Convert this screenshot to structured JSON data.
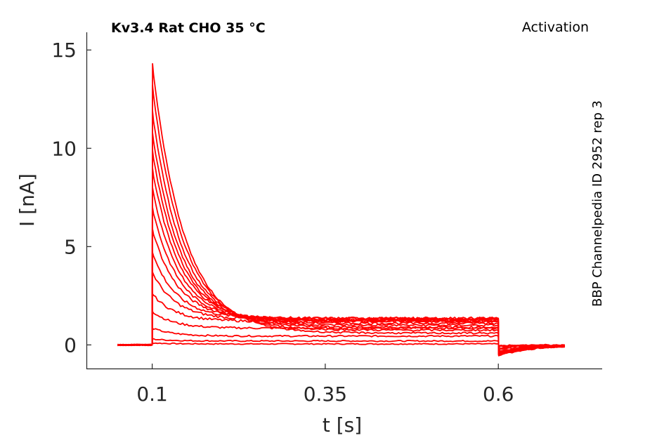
{
  "header": {
    "title": "Kv3.4  Rat  CHO  35 °C",
    "protocol": "Activation",
    "source": "BBP Channelpedia ID 2952 rep 3"
  },
  "chart_data": {
    "type": "line",
    "xlabel": "t [s]",
    "ylabel": "I [nA]",
    "xlim": [
      0.005,
      0.75
    ],
    "ylim": [
      -1.2,
      15.9
    ],
    "xticks": [
      0.1,
      0.35,
      0.6
    ],
    "xtick_labels": [
      "0.1",
      "0.35",
      "0.6"
    ],
    "yticks": [
      0,
      5,
      10,
      15
    ],
    "ytick_labels": [
      "0",
      "5",
      "10",
      "15"
    ],
    "line_color": "#ff0000",
    "axis_color": "#262626",
    "grid": false,
    "step_start": 0.1,
    "step_end": 0.6,
    "sweeps": [
      {
        "peak": 0.1,
        "steady": 0.05,
        "tail": -0.05
      },
      {
        "peak": 0.3,
        "steady": 0.2,
        "tail": -0.05
      },
      {
        "peak": 0.85,
        "steady": 0.45,
        "tail": -0.1
      },
      {
        "peak": 1.7,
        "steady": 0.85,
        "tail": -0.15
      },
      {
        "peak": 2.6,
        "steady": 1.2,
        "tail": -0.25
      },
      {
        "peak": 3.7,
        "steady": 1.3,
        "tail": -0.3
      },
      {
        "peak": 4.7,
        "steady": 1.35,
        "tail": -0.35
      },
      {
        "peak": 5.9,
        "steady": 1.35,
        "tail": -0.4
      },
      {
        "peak": 7.0,
        "steady": 1.3,
        "tail": -0.4
      },
      {
        "peak": 8.0,
        "steady": 1.25,
        "tail": -0.45
      },
      {
        "peak": 9.0,
        "steady": 1.2,
        "tail": -0.45
      },
      {
        "peak": 9.9,
        "steady": 1.1,
        "tail": -0.5
      },
      {
        "peak": 10.8,
        "steady": 1.0,
        "tail": -0.5
      },
      {
        "peak": 11.9,
        "steady": 0.9,
        "tail": -0.5
      },
      {
        "peak": 13.2,
        "steady": 0.75,
        "tail": -0.5
      },
      {
        "peak": 14.3,
        "steady": 0.6,
        "tail": -0.55
      }
    ]
  }
}
